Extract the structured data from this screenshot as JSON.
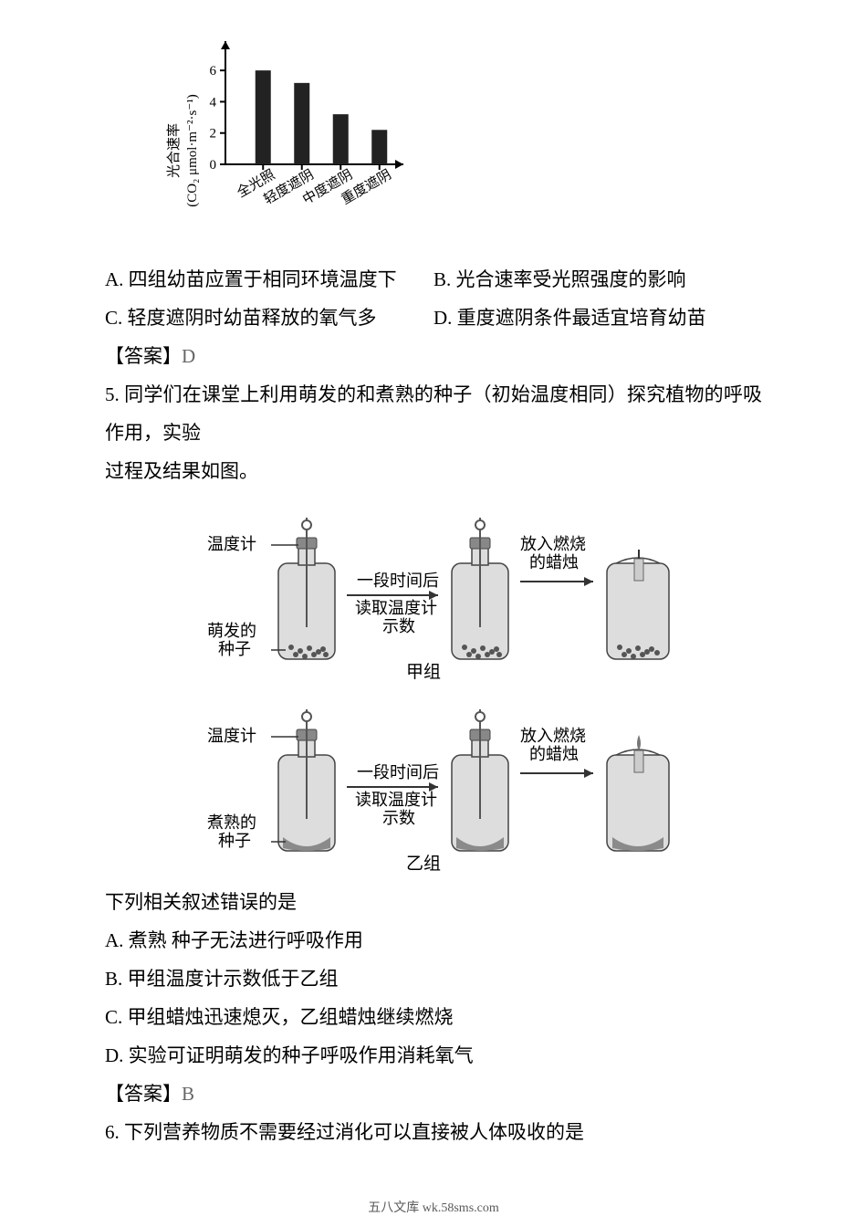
{
  "chart": {
    "type": "bar",
    "y_label": "光合速率\n(CO₂ μmol·m⁻²·s⁻¹)",
    "categories": [
      "全光照",
      "轻度遮阴",
      "中度遮阴",
      "重度遮阴"
    ],
    "values": [
      6.0,
      5.2,
      3.2,
      2.2
    ],
    "y_ticks": [
      0,
      2,
      4,
      6
    ],
    "bar_color": "#222222",
    "axis_color": "#000000",
    "background_color": "#ffffff",
    "ylim": [
      0,
      7
    ],
    "bar_width": 0.4,
    "tick_fontsize": 15
  },
  "q4_opts": {
    "A": "A. 四组幼苗应置于相同环境温度下",
    "B": "B. 光合速率受光照强度的影响",
    "C": "C. 轻度遮阴时幼苗释放的氧气多",
    "D": "D. 重度遮阴条件最适宜培育幼苗"
  },
  "q4_answer_label": "【答案】",
  "q4_answer_value": "D",
  "q5_stem_1": "5. 同学们在课堂上利用萌发的和煮熟的种子（初始温度相同）探究植物的呼吸作用，实验",
  "q5_stem_2": "过程及结果如图。",
  "figA": {
    "thermo_label": "温度计",
    "seed_label": "萌发的\n种子",
    "mid_top": "一段时间后",
    "mid_bot": "读取温度计\n示数",
    "candle_label": "放入燃烧\n的蜡烛",
    "group": "甲组"
  },
  "figB": {
    "thermo_label": "温度计",
    "seed_label": "煮熟的\n种子",
    "mid_top": "一段时间后",
    "mid_bot": "读取温度计\n示数",
    "candle_label": "放入燃烧\n的蜡烛",
    "group": "乙组"
  },
  "q5_prompt": "下列相关叙述错误的是",
  "q5_opts": {
    "A": "A. 煮熟  种子无法进行呼吸作用",
    "B": "B. 甲组温度计示数低于乙组",
    "C": "C. 甲组蜡烛迅速熄灭，乙组蜡烛继续燃烧",
    "D": "D. 实验可证明萌发的种子呼吸作用消耗氧气"
  },
  "q5_answer_label": "【答案】",
  "q5_answer_value": "B",
  "q6_stem": "6. 下列营养物质不需要经过消化可以直接被人体吸收的是",
  "footer": "五八文库 wk.58sms.com"
}
